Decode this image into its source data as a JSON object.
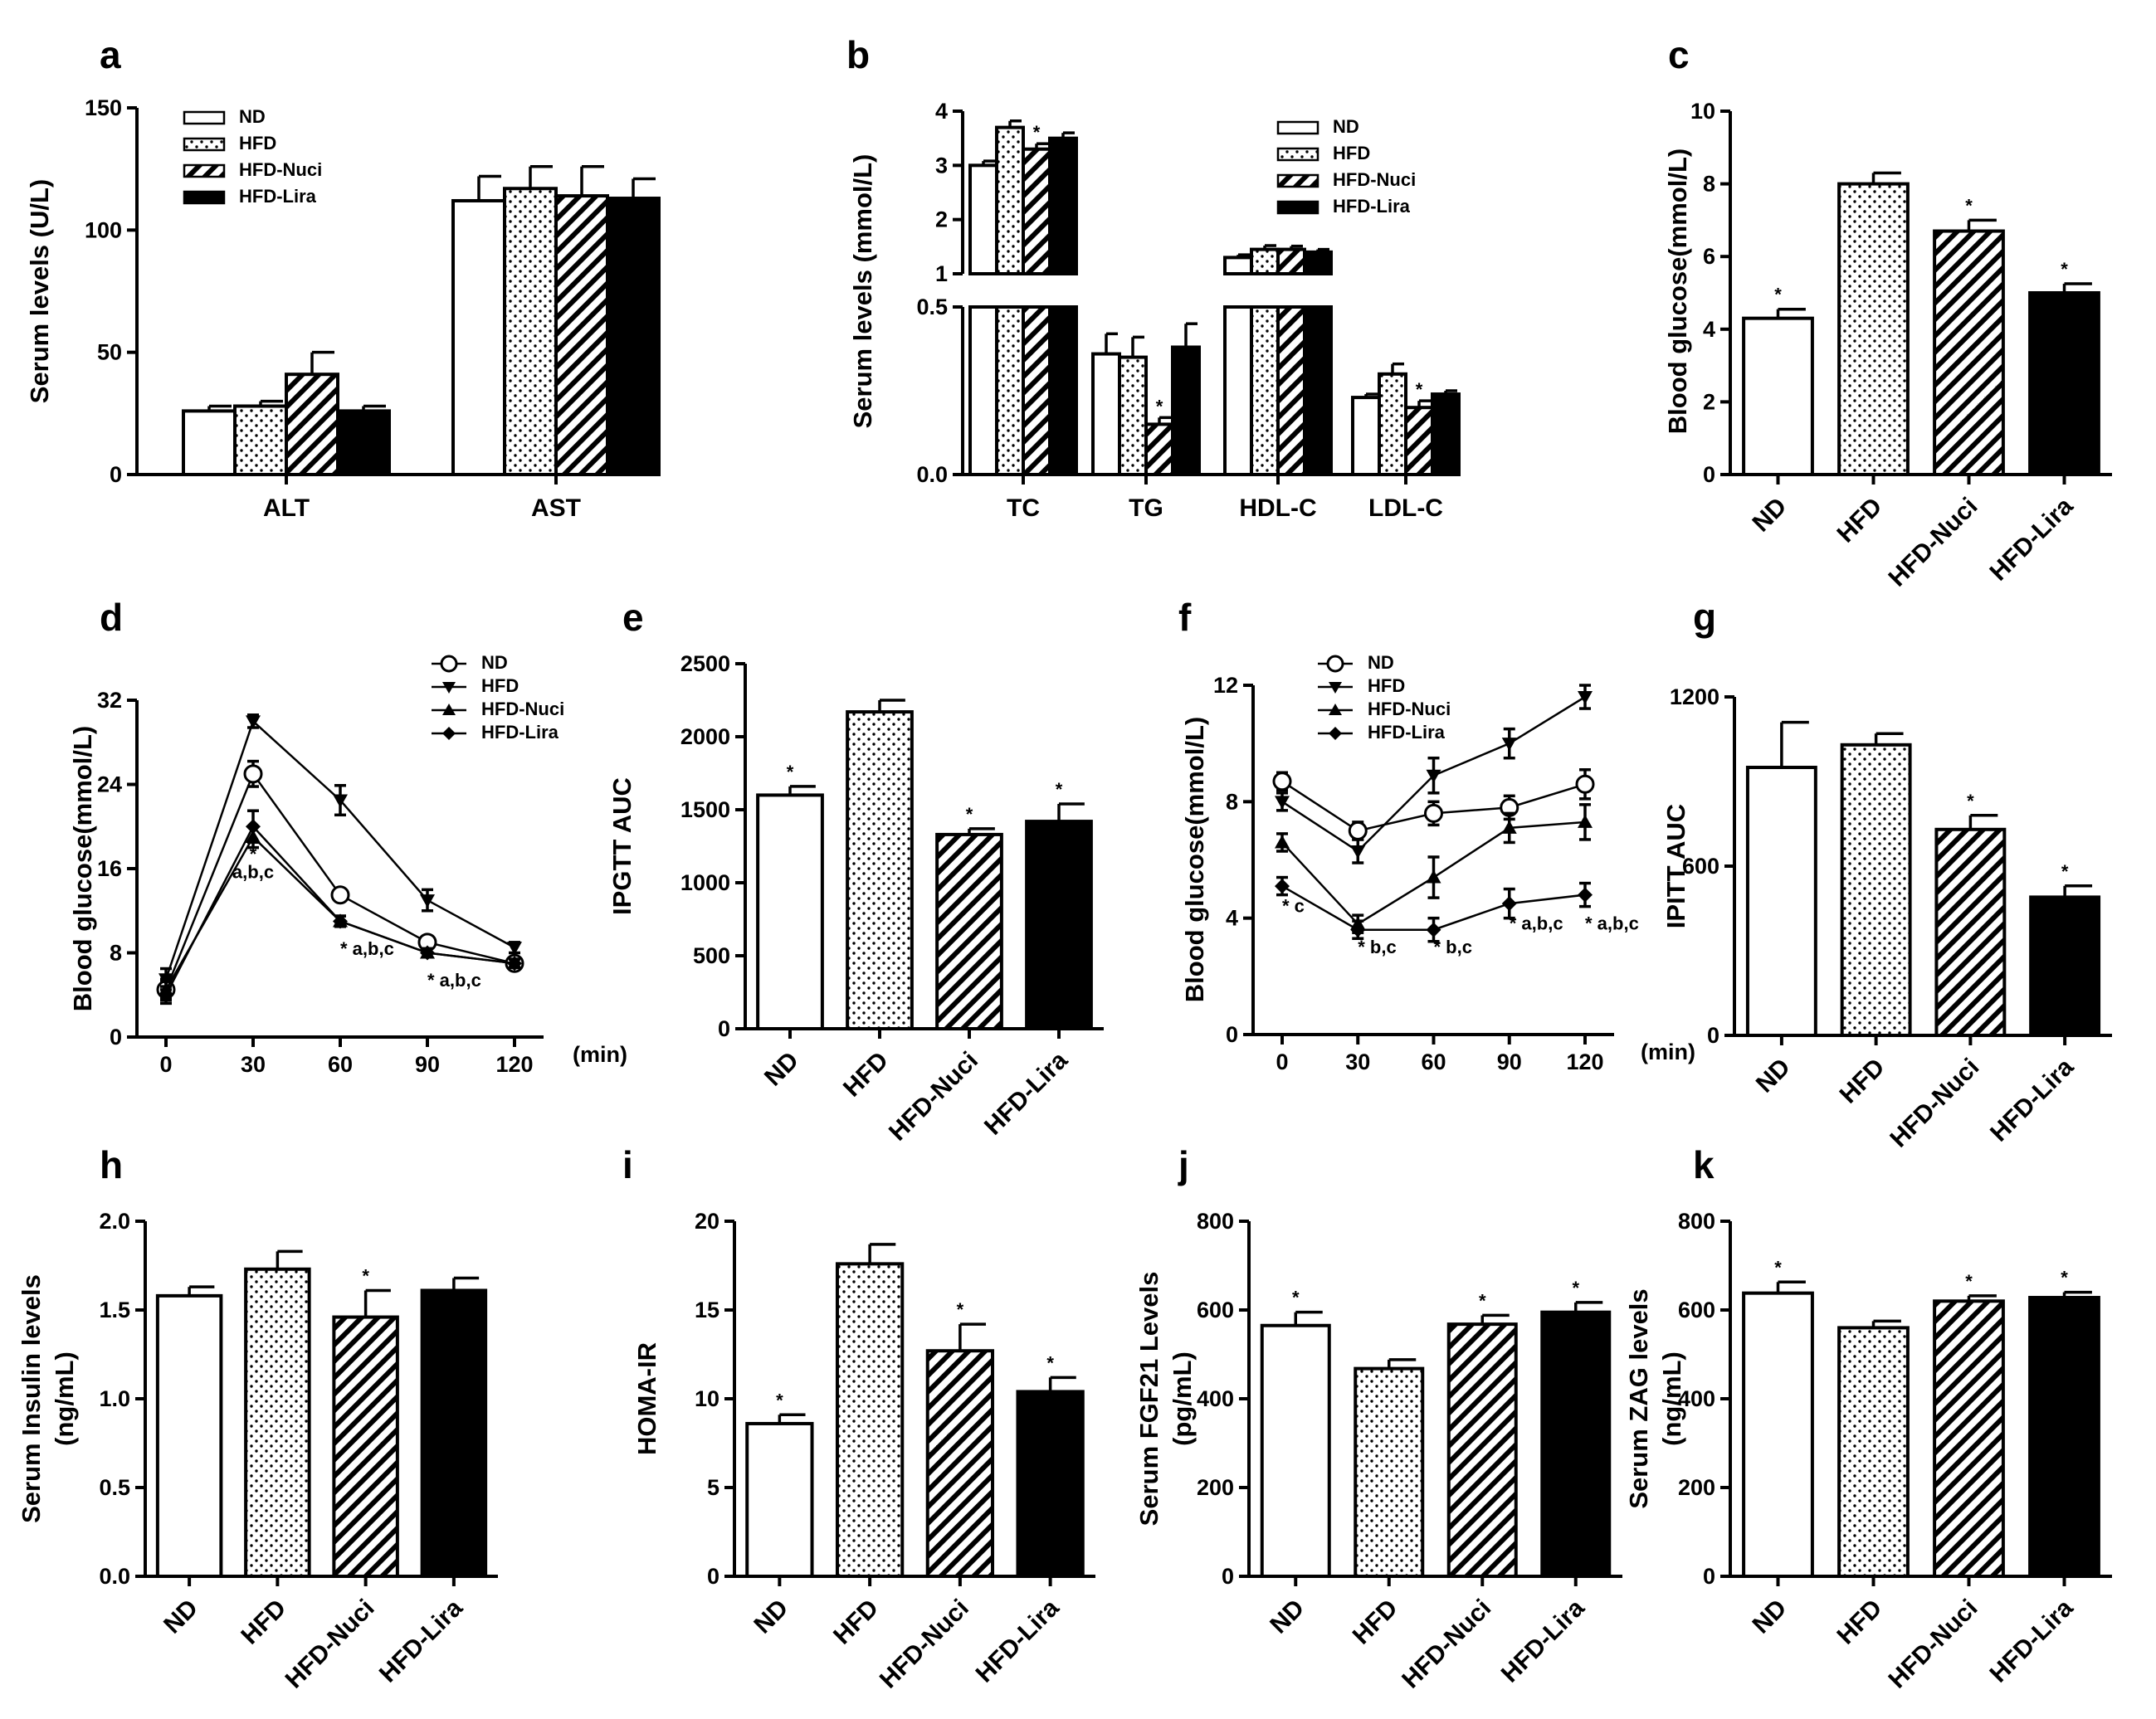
{
  "colors": {
    "ink": "#000000",
    "background": "#ffffff"
  },
  "groups": [
    "ND",
    "HFD",
    "HFD-Nuci",
    "HFD-Lira"
  ],
  "time_unit": "(min)",
  "chart_data": [
    {
      "id": "a",
      "panel_label": "a",
      "type": "bar",
      "legend": true,
      "ylabel": "Serum levels (U/L)",
      "ylim": [
        0,
        150
      ],
      "yticks": [
        0,
        50,
        100,
        150
      ],
      "categories": [
        "ALT",
        "AST"
      ],
      "series": [
        {
          "name": "ND",
          "values": [
            26,
            112
          ],
          "errors": [
            2,
            10
          ],
          "sig": [
            "",
            ""
          ]
        },
        {
          "name": "HFD",
          "values": [
            28,
            117
          ],
          "errors": [
            2,
            9
          ],
          "sig": [
            "",
            ""
          ]
        },
        {
          "name": "HFD-Nuci",
          "values": [
            41,
            114
          ],
          "errors": [
            9,
            12
          ],
          "sig": [
            "",
            ""
          ]
        },
        {
          "name": "HFD-Lira",
          "values": [
            26,
            113
          ],
          "errors": [
            2,
            8
          ],
          "sig": [
            "",
            ""
          ]
        }
      ]
    },
    {
      "id": "b",
      "panel_label": "b",
      "type": "bar",
      "legend": true,
      "broken_axis": true,
      "ylabel": "Serum levels (mmol/L)",
      "ylim_lower": [
        0,
        0.5
      ],
      "yticks_lower": [
        "0.0",
        "0.5"
      ],
      "ylim_upper": [
        1,
        4
      ],
      "yticks_upper": [
        "1",
        "2",
        "3",
        "4"
      ],
      "categories": [
        "TC",
        "TG",
        "HDL-C",
        "LDL-C"
      ],
      "series": [
        {
          "name": "ND",
          "values": [
            3.0,
            0.36,
            1.3,
            0.23
          ],
          "errors": [
            0.08,
            0.06,
            0.05,
            0.01
          ],
          "sig": [
            "",
            "",
            "",
            ""
          ]
        },
        {
          "name": "HFD",
          "values": [
            3.7,
            0.35,
            1.45,
            0.3
          ],
          "errors": [
            0.12,
            0.06,
            0.07,
            0.03
          ],
          "sig": [
            "",
            "",
            "",
            ""
          ]
        },
        {
          "name": "HFD-Nuci",
          "values": [
            3.3,
            0.15,
            1.45,
            0.2
          ],
          "errors": [
            0.1,
            0.02,
            0.06,
            0.02
          ],
          "sig": [
            "*",
            "*",
            "",
            "*"
          ]
        },
        {
          "name": "HFD-Lira",
          "values": [
            3.5,
            0.38,
            1.4,
            0.24
          ],
          "errors": [
            0.1,
            0.07,
            0.05,
            0.01
          ],
          "sig": [
            "",
            "",
            "",
            ""
          ]
        }
      ]
    },
    {
      "id": "c",
      "panel_label": "c",
      "type": "bar",
      "ylabel": "Blood glucose(mmol/L)",
      "ylim": [
        0,
        10
      ],
      "yticks": [
        0,
        2,
        4,
        6,
        8,
        10
      ],
      "categories": [
        "ND",
        "HFD",
        "HFD-Nuci",
        "HFD-Lira"
      ],
      "values": [
        4.3,
        8.0,
        6.7,
        5.0
      ],
      "errors": [
        0.25,
        0.3,
        0.3,
        0.25
      ],
      "sig": [
        "*",
        "",
        "*",
        "*"
      ]
    },
    {
      "id": "d",
      "panel_label": "d",
      "type": "line",
      "ylabel": "Blood glucose(mmol/L)",
      "ylim": [
        0,
        32
      ],
      "yticks": [
        0,
        8,
        16,
        24,
        32
      ],
      "x": [
        0,
        30,
        60,
        90,
        120
      ],
      "xlabel": "(min)",
      "series": [
        {
          "name": "ND",
          "marker": "open-circle",
          "values": [
            4.5,
            25,
            13.5,
            9,
            7
          ],
          "errors": [
            1.0,
            1.2,
            0.5,
            0.5,
            0.4
          ]
        },
        {
          "name": "HFD",
          "marker": "down-triangle",
          "values": [
            5.5,
            30,
            22.5,
            13,
            8.5
          ],
          "errors": [
            1.0,
            0.6,
            1.4,
            1.0,
            0.5
          ]
        },
        {
          "name": "HFD-Nuci",
          "marker": "up-triangle",
          "values": [
            4.5,
            19,
            11,
            8,
            7
          ],
          "errors": [
            0.8,
            1.0,
            0.5,
            0.4,
            0.4
          ]
        },
        {
          "name": "HFD-Lira",
          "marker": "diamond",
          "values": [
            4,
            20,
            11,
            8,
            7
          ],
          "errors": [
            0.8,
            1.5,
            0.5,
            0.4,
            0.4
          ]
        }
      ],
      "annotations": [
        {
          "x": 30,
          "text": "*",
          "y": 16.8
        },
        {
          "x": 30,
          "text": "a,b,c",
          "y": 15.1
        },
        {
          "x": 60,
          "text": "* a,b,c",
          "y": 7.8
        },
        {
          "x": 90,
          "text": "* a,b,c",
          "y": 4.8
        }
      ]
    },
    {
      "id": "e",
      "panel_label": "e",
      "type": "bar",
      "ylabel": "IPGTT AUC",
      "ylim": [
        0,
        2500
      ],
      "yticks": [
        0,
        500,
        1000,
        1500,
        2000,
        2500
      ],
      "categories": [
        "ND",
        "HFD",
        "HFD-Nuci",
        "HFD-Lira"
      ],
      "values": [
        1600,
        2170,
        1330,
        1420
      ],
      "errors": [
        60,
        80,
        40,
        120
      ],
      "sig": [
        "*",
        "",
        "*",
        "*"
      ]
    },
    {
      "id": "f",
      "panel_label": "f",
      "type": "line",
      "ylabel": "Blood glucose(mmol/L)",
      "ylim": [
        0,
        12
      ],
      "yticks": [
        0,
        4,
        8,
        12
      ],
      "x": [
        0,
        30,
        60,
        90,
        120
      ],
      "xlabel": "(min)",
      "series": [
        {
          "name": "ND",
          "marker": "open-circle",
          "values": [
            8.7,
            7.0,
            7.6,
            7.8,
            8.6
          ],
          "errors": [
            0.3,
            0.3,
            0.4,
            0.4,
            0.5
          ]
        },
        {
          "name": "HFD",
          "marker": "down-triangle",
          "values": [
            8.0,
            6.3,
            8.9,
            10.0,
            11.6
          ],
          "errors": [
            0.3,
            0.4,
            0.6,
            0.5,
            0.4
          ]
        },
        {
          "name": "HFD-Nuci",
          "marker": "up-triangle",
          "values": [
            6.6,
            3.8,
            5.4,
            7.1,
            7.3
          ],
          "errors": [
            0.3,
            0.3,
            0.7,
            0.5,
            0.6
          ]
        },
        {
          "name": "HFD-Lira",
          "marker": "diamond",
          "values": [
            5.1,
            3.6,
            3.6,
            4.5,
            4.8
          ],
          "errors": [
            0.3,
            0.3,
            0.4,
            0.5,
            0.4
          ]
        }
      ],
      "annotations": [
        {
          "x": 0,
          "text": "* c",
          "y": 4.2
        },
        {
          "x": 30,
          "text": "* b,c",
          "y": 2.8
        },
        {
          "x": 60,
          "text": "* b,c",
          "y": 2.8
        },
        {
          "x": 90,
          "text": "* a,b,c",
          "y": 3.6
        },
        {
          "x": 120,
          "text": "* a,b,c",
          "y": 3.6
        }
      ]
    },
    {
      "id": "g",
      "panel_label": "g",
      "type": "bar",
      "ylabel": "IPITT AUC",
      "ylim": [
        0,
        1200
      ],
      "yticks": [
        0,
        600,
        1200
      ],
      "categories": [
        "ND",
        "HFD",
        "HFD-Nuci",
        "HFD-Lira"
      ],
      "values": [
        950,
        1030,
        730,
        490
      ],
      "errors": [
        160,
        40,
        50,
        40
      ],
      "sig": [
        "",
        "",
        "*",
        "*"
      ]
    },
    {
      "id": "h",
      "panel_label": "h",
      "type": "bar",
      "ylabel": "Serum Insulin levels",
      "ylabel2": "(ng/mL)",
      "ylim": [
        0,
        2.0
      ],
      "yticks": [
        "0.0",
        "0.5",
        "1.0",
        "1.5",
        "2.0"
      ],
      "categories": [
        "ND",
        "HFD",
        "HFD-Nuci",
        "HFD-Lira"
      ],
      "values": [
        1.58,
        1.73,
        1.46,
        1.61
      ],
      "errors": [
        0.05,
        0.1,
        0.15,
        0.07
      ],
      "sig": [
        "",
        "",
        "*",
        ""
      ]
    },
    {
      "id": "i",
      "panel_label": "i",
      "type": "bar",
      "ylabel": "HOMA-IR",
      "ylim": [
        0,
        20
      ],
      "yticks": [
        0,
        5,
        10,
        15,
        20
      ],
      "categories": [
        "ND",
        "HFD",
        "HFD-Nuci",
        "HFD-Lira"
      ],
      "values": [
        8.6,
        17.6,
        12.7,
        10.4
      ],
      "errors": [
        0.5,
        1.1,
        1.5,
        0.8
      ],
      "sig": [
        "*",
        "",
        "*",
        "*"
      ]
    },
    {
      "id": "j",
      "panel_label": "j",
      "type": "bar",
      "ylabel": "Serum FGF21 Levels",
      "ylabel2": "(pg/mL)",
      "ylim": [
        0,
        800
      ],
      "yticks": [
        0,
        200,
        400,
        600,
        800
      ],
      "categories": [
        "ND",
        "HFD",
        "HFD-Nuci",
        "HFD-Lira"
      ],
      "values": [
        565,
        468,
        568,
        595
      ],
      "errors": [
        30,
        20,
        20,
        22
      ],
      "sig": [
        "*",
        "",
        "*",
        "*"
      ]
    },
    {
      "id": "k",
      "panel_label": "k",
      "type": "bar",
      "ylabel": "Serum ZAG levels",
      "ylabel2": "(ng/mL)",
      "ylim": [
        0,
        800
      ],
      "yticks": [
        0,
        200,
        400,
        600,
        800
      ],
      "categories": [
        "ND",
        "HFD",
        "HFD-Nuci",
        "HFD-Lira"
      ],
      "values": [
        638,
        560,
        620,
        628
      ],
      "errors": [
        25,
        15,
        12,
        12
      ],
      "sig": [
        "*",
        "",
        "*",
        "*"
      ]
    }
  ]
}
